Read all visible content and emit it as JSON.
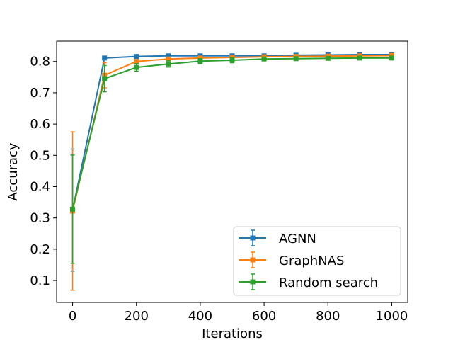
{
  "chart_data": {
    "type": "line",
    "title": "",
    "xlabel": "Iterations",
    "ylabel": "Accuracy",
    "xlim": [
      -50,
      1050
    ],
    "ylim": [
      0.03,
      0.865
    ],
    "x_ticks": [
      0,
      200,
      400,
      600,
      800,
      1000
    ],
    "y_ticks": [
      0.1,
      0.2,
      0.3,
      0.4,
      0.5,
      0.6,
      0.7,
      0.8
    ],
    "x_tick_labels": [
      "0",
      "200",
      "400",
      "600",
      "800",
      "1000"
    ],
    "y_tick_labels": [
      "0.1",
      "0.2",
      "0.3",
      "0.4",
      "0.5",
      "0.6",
      "0.7",
      "0.8"
    ],
    "grid": false,
    "legend_position": "lower-right",
    "marker": "square",
    "x": [
      0,
      100,
      200,
      300,
      400,
      500,
      600,
      700,
      800,
      900,
      1000
    ],
    "series": [
      {
        "name": "AGNN",
        "color": "#1f77b4",
        "values": [
          0.325,
          0.811,
          0.816,
          0.818,
          0.818,
          0.818,
          0.818,
          0.82,
          0.821,
          0.822,
          0.822
        ],
        "errors": [
          0.195,
          0.003,
          0.003,
          0.003,
          0.003,
          0.003,
          0.003,
          0.003,
          0.003,
          0.003,
          0.003
        ]
      },
      {
        "name": "GraphNAS",
        "color": "#ff7f0e",
        "values": [
          0.322,
          0.756,
          0.8,
          0.808,
          0.811,
          0.813,
          0.815,
          0.816,
          0.817,
          0.818,
          0.819
        ],
        "errors": [
          0.253,
          0.04,
          0.005,
          0.004,
          0.004,
          0.004,
          0.004,
          0.004,
          0.004,
          0.004,
          0.004
        ]
      },
      {
        "name": "Random search",
        "color": "#2ca02c",
        "values": [
          0.328,
          0.745,
          0.781,
          0.792,
          0.801,
          0.804,
          0.808,
          0.809,
          0.81,
          0.811,
          0.811
        ],
        "errors": [
          0.173,
          0.042,
          0.012,
          0.01,
          0.008,
          0.008,
          0.005,
          0.005,
          0.005,
          0.005,
          0.005
        ]
      }
    ]
  }
}
